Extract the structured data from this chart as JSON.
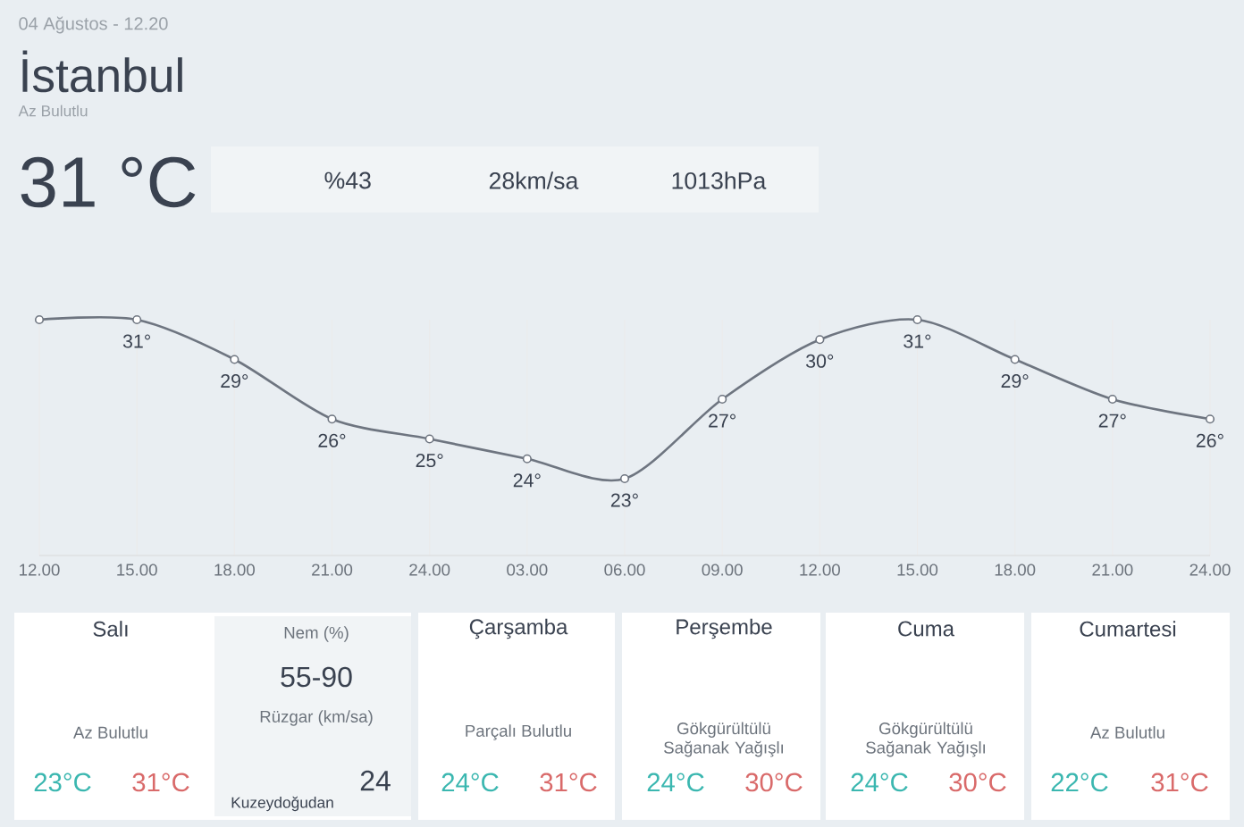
{
  "chart_data": {
    "type": "line",
    "title": "İstanbul",
    "subtitle": "Az Bulutlu",
    "categories": [
      "12.00",
      "15.00",
      "18.00",
      "21.00",
      "24.00",
      "03.00",
      "06.00",
      "09.00",
      "12.00",
      "15.00",
      "18.00",
      "21.00",
      "24.00"
    ],
    "values": [
      31,
      31,
      29,
      26,
      25,
      24,
      23,
      27,
      30,
      31,
      29,
      27,
      26
    ],
    "value_labels": [
      null,
      "31°",
      "29°",
      "26°",
      "25°",
      "24°",
      "23°",
      "27°",
      "30°",
      "31°",
      "29°",
      "27°",
      "26°"
    ],
    "color": "#6e7580",
    "marker": "circle",
    "grid": "x",
    "annotations": [
      "04 Ağustos - 12.20",
      "31 °C",
      "%43",
      "28km/sa",
      "1013hPa",
      "Salı",
      "Az Bulutlu",
      "23°C",
      "31°C",
      "Nem (%)",
      "55-90",
      "Rüzgar (km/sa)",
      "24",
      "Kuzeydoğudan",
      "Çarşamba",
      "Parçalı Bulutlu",
      "24°C",
      "31°C",
      "Perşembe",
      "Gökgürültülü Sağanak Yağışlı",
      "24°C",
      "30°C",
      "Cuma",
      "Gökgürültülü Sağanak Yağışlı",
      "24°C",
      "30°C",
      "Cumartesi",
      "Az Bulutlu",
      "22°C",
      "31°C"
    ]
  }
}
